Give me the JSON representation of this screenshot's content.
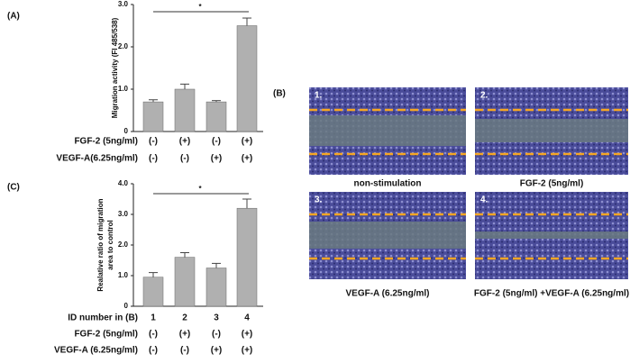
{
  "chart_data": [
    {
      "type": "bar",
      "panel_label": "(A)",
      "ylabel": "Migration activity (FI 485/538)",
      "values": [
        0.7,
        1.0,
        0.7,
        2.5
      ],
      "errors": [
        0.05,
        0.12,
        0.03,
        0.18
      ],
      "color": "#b0b0b0",
      "ylim": [
        0,
        3
      ],
      "yticks": [
        0,
        {
          "value": 1,
          "label": "1.0"
        },
        {
          "value": 2,
          "label": "2.0"
        },
        {
          "value": 3,
          "label": "3.0"
        }
      ],
      "significance": "*",
      "rows": [
        {
          "name": "FGF-2 (5ng/ml)",
          "labels": [
            "(-)",
            "(+)",
            "(-)",
            "(+)"
          ]
        },
        {
          "name": "VEGF-A(6.25ng/ml)",
          "labels": [
            "(-)",
            "(-)",
            "(+)",
            "(+)"
          ]
        }
      ]
    },
    {
      "type": "bar",
      "panel_label": "(C)",
      "ylabel": [
        "Realative ratio of migration",
        "area to control"
      ],
      "values": [
        0.95,
        1.6,
        1.25,
        3.2
      ],
      "errors": [
        0.15,
        0.15,
        0.15,
        0.3
      ],
      "color": "#b0b0b0",
      "ylim": [
        0,
        4
      ],
      "yticks": [
        0,
        {
          "value": 1,
          "label": "1.0"
        },
        {
          "value": 2,
          "label": "2.0"
        },
        {
          "value": 3,
          "label": "3.0"
        },
        {
          "value": 4,
          "label": "4.0"
        }
      ],
      "significance": "*",
      "rows": [
        {
          "name": "ID number in (B)",
          "labels": [
            "1",
            "2",
            "3",
            "4"
          ]
        },
        {
          "name": "FGF-2 (5ng/ml)",
          "labels": [
            "(-)",
            "(+)",
            "(-)",
            "(+)"
          ]
        },
        {
          "name": "VEGF-A (6.25ng/ml)",
          "labels": [
            "(-)",
            "(-)",
            "(+)",
            "(+)"
          ]
        }
      ]
    }
  ],
  "panel_b": {
    "label": "(B)",
    "images": [
      {
        "number": "1.",
        "caption": "non-stimulation"
      },
      {
        "number": "2.",
        "caption": "FGF-2 (5ng/ml)"
      },
      {
        "number": "3.",
        "caption": "VEGF-A (6.25ng/ml)"
      },
      {
        "number": "4.",
        "caption": "FGF-2 (5ng/ml) +VEGF-A (6.25ng/ml)"
      }
    ]
  }
}
